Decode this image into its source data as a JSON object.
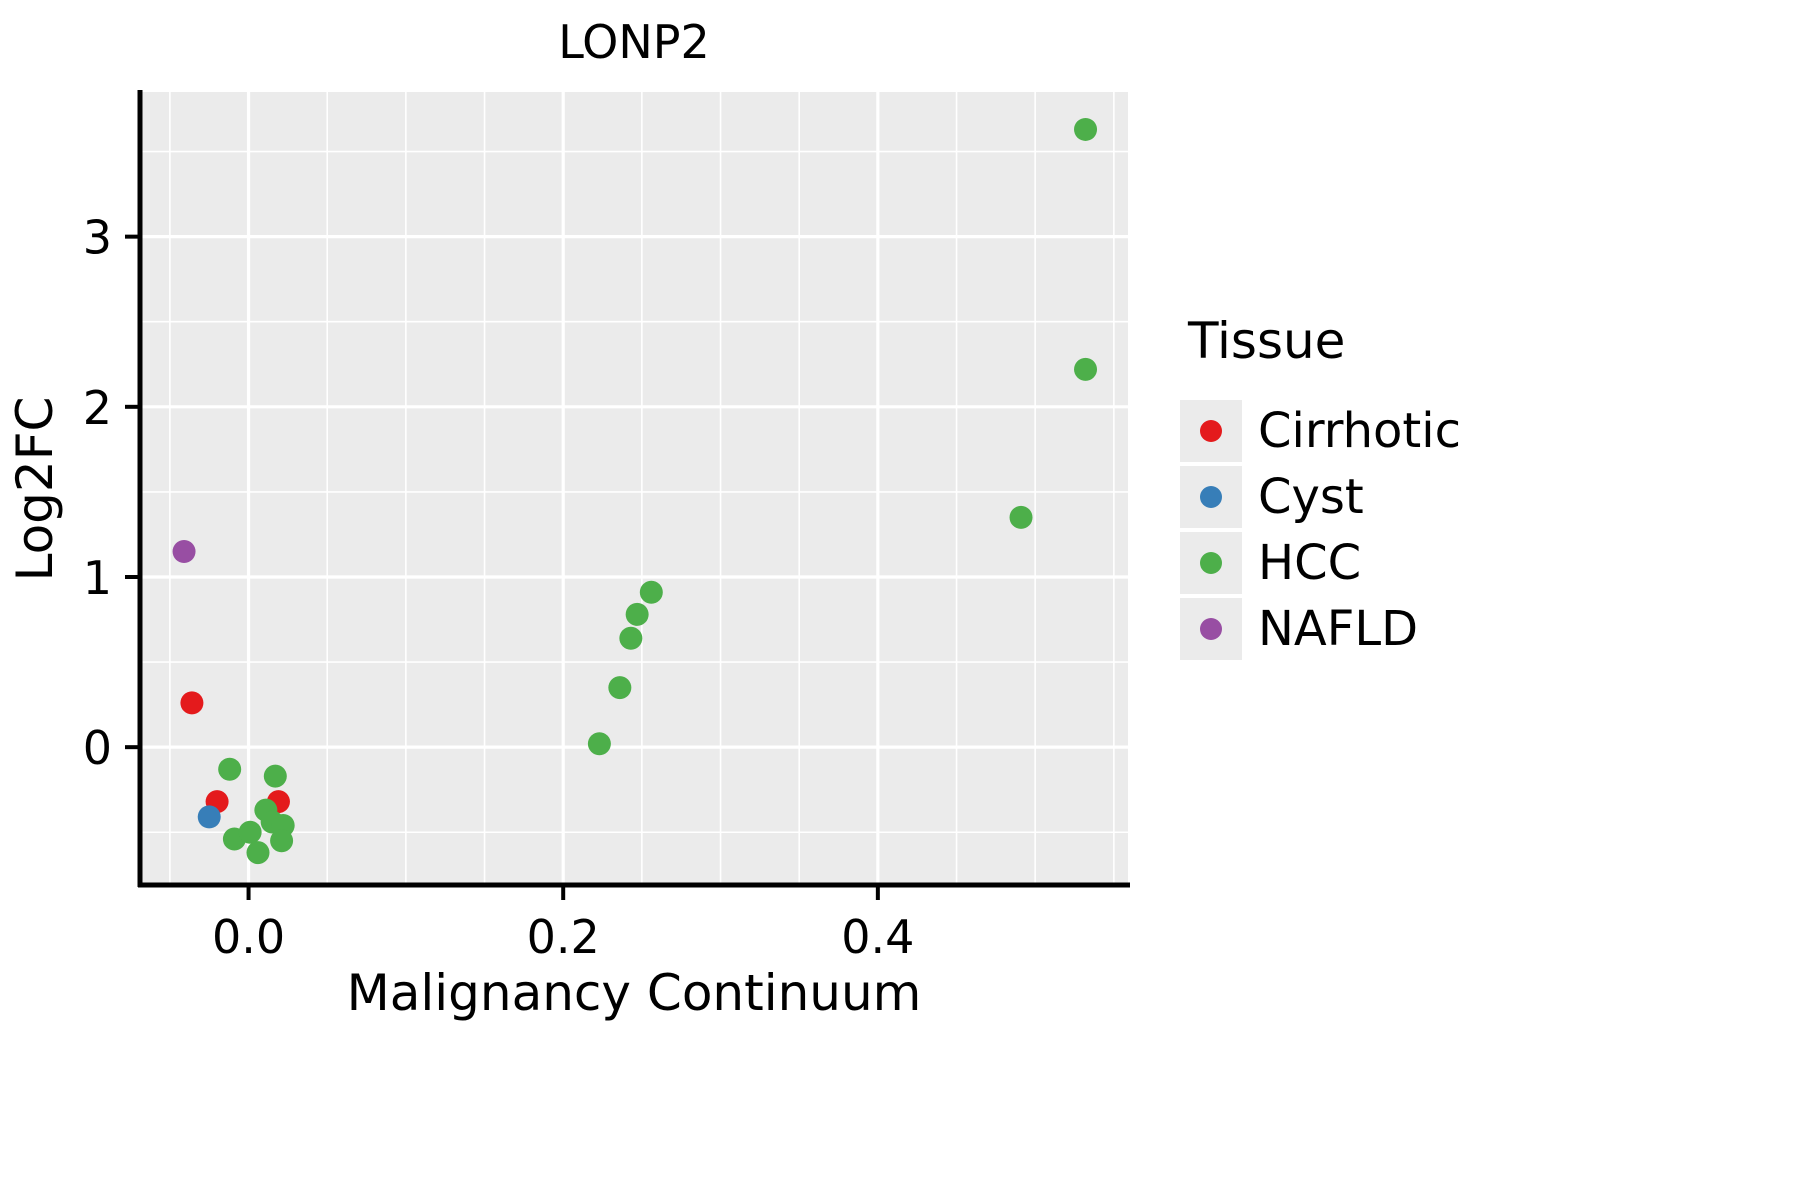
{
  "chart_data": {
    "type": "scatter",
    "title": "LONP2",
    "xlabel": "Malignancy Continuum",
    "ylabel": "Log2FC",
    "xlim": [
      -0.069,
      0.559
    ],
    "ylim": [
      -0.81,
      3.85
    ],
    "xticks": {
      "values": [
        0.0,
        0.2,
        0.4
      ],
      "labels": [
        "0.0",
        "0.2",
        "0.4"
      ]
    },
    "yticks": {
      "values": [
        0,
        1,
        2,
        3
      ],
      "labels": [
        "0",
        "1",
        "2",
        "3"
      ]
    },
    "minor_xticks": [
      -0.05,
      0.05,
      0.1,
      0.15,
      0.25,
      0.3,
      0.35,
      0.45,
      0.5,
      0.55
    ],
    "minor_yticks": [
      -0.5,
      0.5,
      1.5,
      2.5,
      3.5
    ],
    "grid": true,
    "panel_bg": "#ebebeb",
    "grid_color": "#ffffff",
    "axis_color": "#000000",
    "legend_position": "right",
    "point_radius": 11.5,
    "series": [
      {
        "name": "Cirrhotic",
        "color": "#e41a1c",
        "points": [
          [
            -0.036,
            0.26
          ],
          [
            -0.02,
            -0.32
          ],
          [
            0.019,
            -0.32
          ]
        ]
      },
      {
        "name": "Cyst",
        "color": "#377eb8",
        "points": [
          [
            -0.025,
            -0.41
          ]
        ]
      },
      {
        "name": "HCC",
        "color": "#4daf4a",
        "points": [
          [
            0.532,
            3.63
          ],
          [
            0.532,
            2.22
          ],
          [
            0.491,
            1.35
          ],
          [
            0.256,
            0.91
          ],
          [
            0.247,
            0.78
          ],
          [
            0.243,
            0.64
          ],
          [
            0.236,
            0.35
          ],
          [
            0.223,
            0.02
          ],
          [
            -0.012,
            -0.13
          ],
          [
            0.017,
            -0.17
          ],
          [
            0.011,
            -0.37
          ],
          [
            0.015,
            -0.44
          ],
          [
            0.022,
            -0.46
          ],
          [
            -0.009,
            -0.54
          ],
          [
            0.021,
            -0.55
          ],
          [
            0.001,
            -0.5
          ],
          [
            0.006,
            -0.62
          ]
        ]
      },
      {
        "name": "NAFLD",
        "color": "#984ea3",
        "points": [
          [
            -0.041,
            1.15
          ]
        ]
      }
    ]
  },
  "legend": {
    "title": "Tissue"
  }
}
